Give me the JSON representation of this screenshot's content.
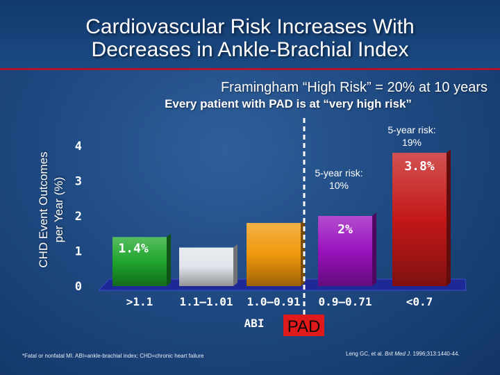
{
  "title": "Cardiovascular Risk Increases With\nDecreases in Ankle-Brachial Index",
  "subtitle_1": "Framingham “High Risk” = 20% at 10 years",
  "subtitle_2": "Every patient with PAD is at “very high risk”",
  "footnote": "*Fatal or nonfatal MI. ABI=ankle-brachial index; CHD=chronic heart failure",
  "citation": {
    "authors": "Leng GC, et al. ",
    "journal": "Brit Med J",
    "details": ". 1996;313:1440-44."
  },
  "chart_data": {
    "type": "bar",
    "ylabel": "CHD Event Outcomes\nper Year (%)",
    "xlabel": "ABI",
    "ylim": [
      0,
      4
    ],
    "yticks": [
      0,
      1,
      2,
      3,
      4
    ],
    "categories": [
      ">1.1",
      "1.1–1.01",
      "1.0–0.91",
      "0.9–0.71",
      "<0.7"
    ],
    "values": [
      1.4,
      1.1,
      1.8,
      2.0,
      3.8
    ],
    "value_labels": [
      "1.4%",
      "",
      "",
      "2%",
      "3.8%"
    ],
    "bar_colors": [
      "#1fa52c",
      "#e0e4ea",
      "#f0980c",
      "#9a12bd",
      "#c31818"
    ],
    "annotations": [
      "5-year risk:\n10%",
      "5-year risk:\n19%"
    ],
    "pad_label": "PAD",
    "divider": "dashed vertical line between 1.0–0.91 and 0.9–0.71",
    "grid": false
  }
}
